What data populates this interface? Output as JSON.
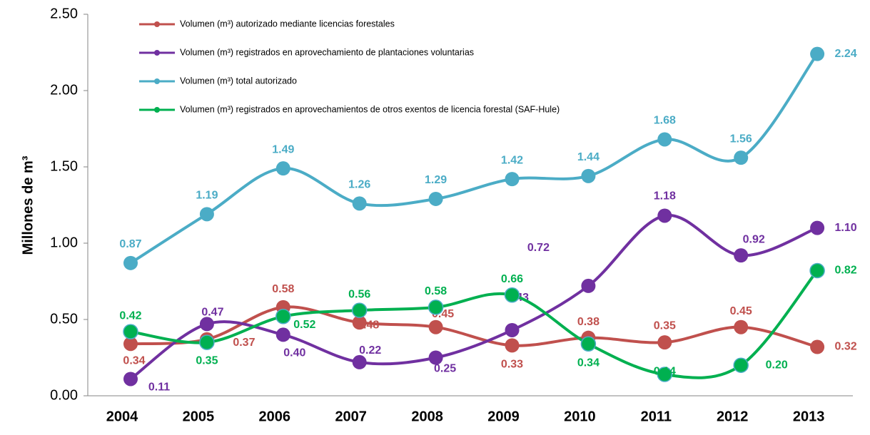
{
  "chart_data": {
    "type": "line",
    "y_label": "Millones de m³",
    "categories": [
      "2004",
      "2005",
      "2006",
      "2007",
      "2008",
      "2009",
      "2010",
      "2011",
      "2012",
      "2013"
    ],
    "series": [
      {
        "name": "Volumen (m³) autorizado mediante licencias forestales",
        "color": "#c0504d",
        "values": [
          0.34,
          0.37,
          0.58,
          0.48,
          0.45,
          0.33,
          0.38,
          0.35,
          0.45,
          0.32
        ],
        "value_labels": [
          "0.34",
          "0.37",
          "0.58",
          "0.48",
          "0.45",
          "0.33",
          "0.38",
          "0.35",
          "0.45",
          "0.32"
        ]
      },
      {
        "name": "Volumen (m³) registrados en aprovechamiento de plantaciones voluntarias",
        "color": "#7030a0",
        "values": [
          0.11,
          0.47,
          0.4,
          0.22,
          0.25,
          0.43,
          0.72,
          1.18,
          0.92,
          1.1
        ],
        "value_labels": [
          "0.11",
          "0.47",
          "0.40",
          "0.22",
          "0.25",
          "0.43",
          "0.72",
          "1.18",
          "0.92",
          "1.10"
        ]
      },
      {
        "name": "Volumen (m³) total autorizado",
        "color": "#4bacc6",
        "values": [
          0.87,
          1.19,
          1.49,
          1.26,
          1.29,
          1.42,
          1.44,
          1.68,
          1.56,
          2.24
        ],
        "value_labels": [
          "0.87",
          "1.19",
          "1.49",
          "1.26",
          "1.29",
          "1.42",
          "1.44",
          "1.68",
          "1.56",
          "2.24"
        ]
      },
      {
        "name": "Volumen (m³) registrados en aprovechamientos de otros exentos de licencia forestal (SAF-Hule)",
        "color": "#00b050",
        "values": [
          0.42,
          0.35,
          0.52,
          0.56,
          0.58,
          0.66,
          0.34,
          0.14,
          0.2,
          0.82
        ],
        "value_labels": [
          "0.42",
          "0.35",
          "0.52",
          "0.56",
          "0.58",
          "0.66",
          "0.34",
          "0.14",
          "0.20",
          "0.82"
        ]
      }
    ],
    "ylim": [
      0,
      2.5
    ],
    "yticks": [
      {
        "value": 0,
        "label": "0.00"
      },
      {
        "value": 0.5,
        "label": "0.50"
      },
      {
        "value": 1,
        "label": "1.00"
      },
      {
        "value": 1.5,
        "label": "1.50"
      },
      {
        "value": 2,
        "label": "2.00"
      },
      {
        "value": 2.5,
        "label": "2.50"
      }
    ],
    "legend": "top-left"
  }
}
